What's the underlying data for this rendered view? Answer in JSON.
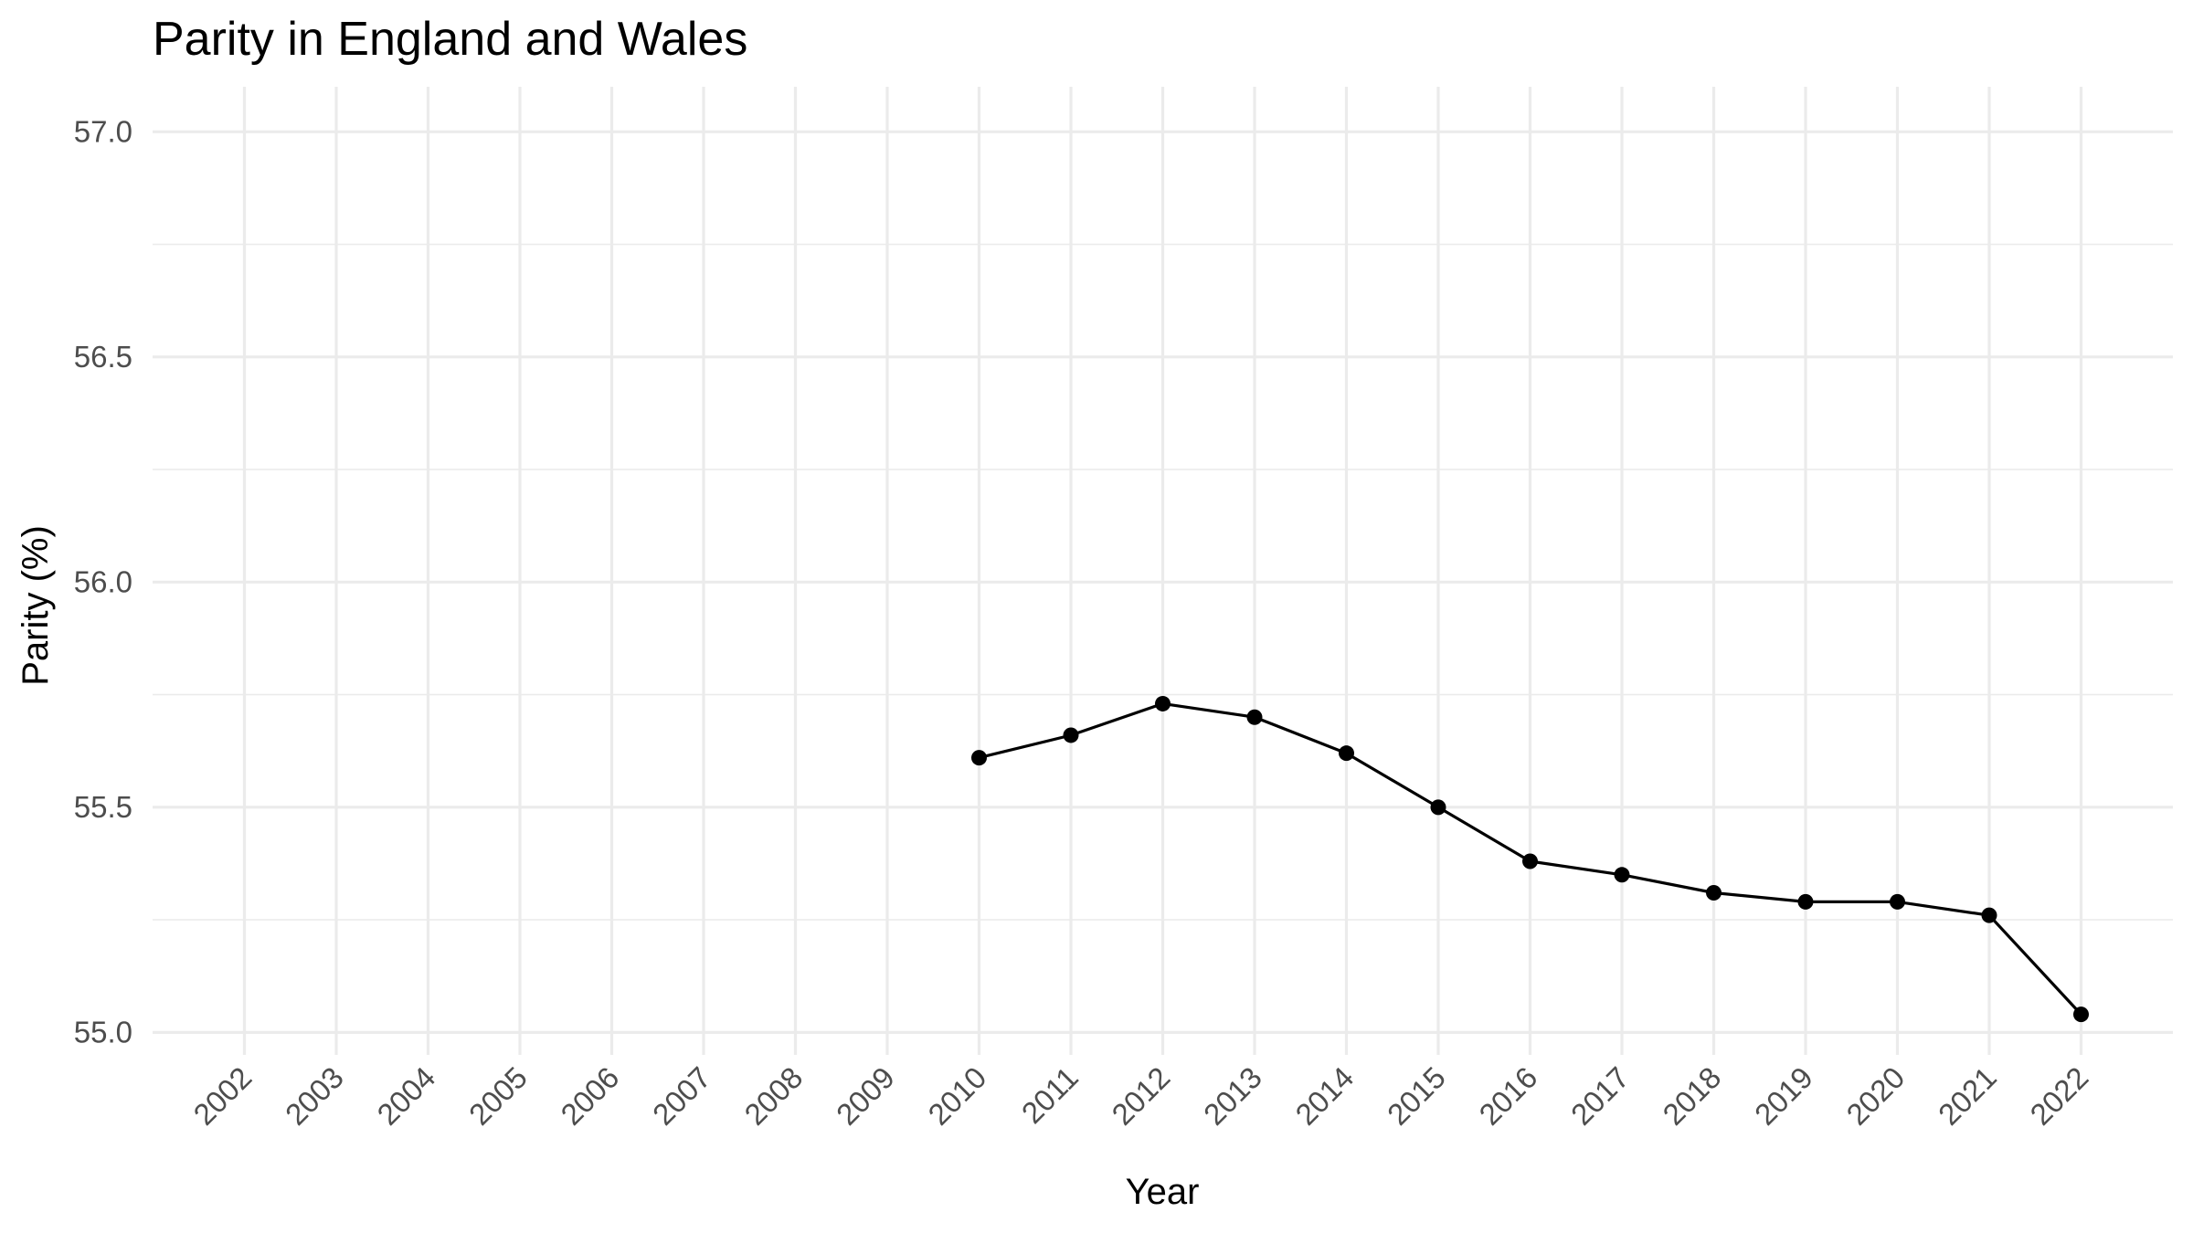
{
  "chart_data": {
    "type": "line",
    "title": "Parity in England and Wales",
    "xlabel": "Year",
    "ylabel": "Parity (%)",
    "x_ticks": [
      "2002",
      "2003",
      "2004",
      "2005",
      "2006",
      "2007",
      "2008",
      "2009",
      "2010",
      "2011",
      "2012",
      "2013",
      "2014",
      "2015",
      "2016",
      "2017",
      "2018",
      "2019",
      "2020",
      "2021",
      "2022"
    ],
    "y_ticks": [
      "55.0",
      "55.5",
      "56.0",
      "56.5",
      "57.0"
    ],
    "xlim": [
      2001,
      2023
    ],
    "ylim": [
      54.95,
      57.1
    ],
    "grid": true,
    "legend": "none",
    "line_color": "#000000",
    "grid_color": "#ebebeb",
    "series": [
      {
        "x": [
          2010,
          2011,
          2012,
          2013,
          2014,
          2015,
          2016,
          2017,
          2018,
          2019,
          2020,
          2021,
          2022
        ],
        "values": [
          55.61,
          55.66,
          55.73,
          55.7,
          55.62,
          55.5,
          55.38,
          55.35,
          55.31,
          55.29,
          55.29,
          55.26,
          55.04
        ]
      }
    ]
  }
}
